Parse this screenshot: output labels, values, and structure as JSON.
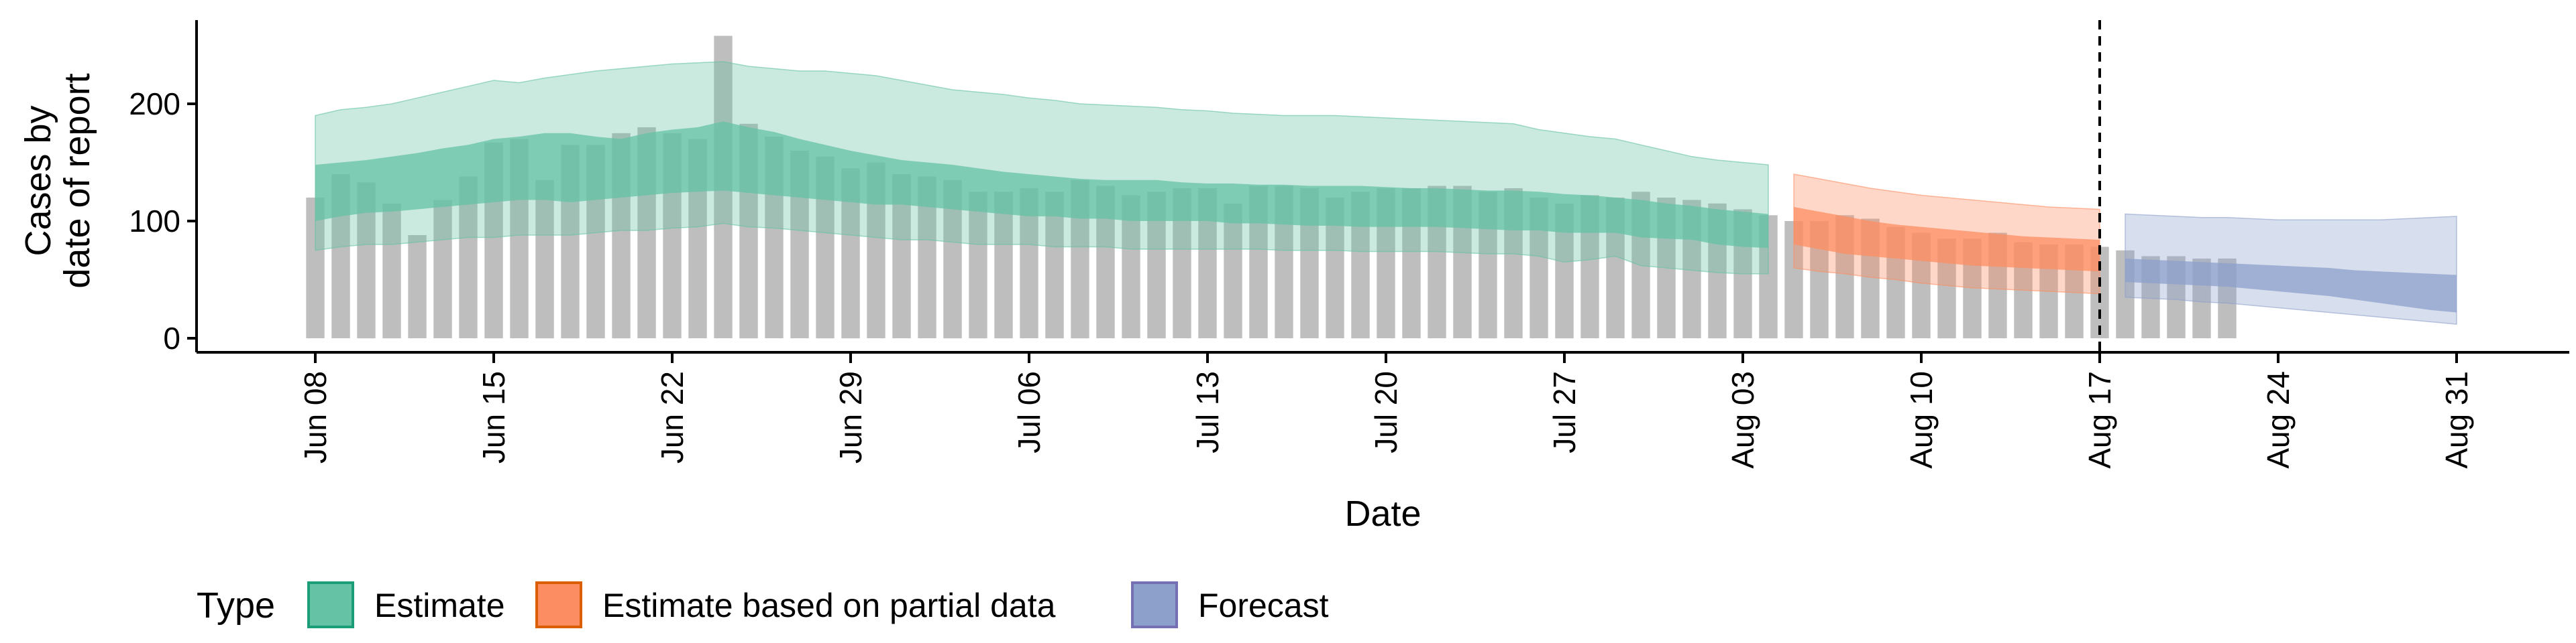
{
  "chart_data": {
    "type": "bar",
    "xlabel": "Date",
    "ylabel_lines": [
      "Cases by",
      "date of report"
    ],
    "x_start_date": "2020-06-08",
    "x_end_date": "2020-08-31",
    "ylim": [
      0,
      270
    ],
    "yticks": [
      0,
      100,
      200
    ],
    "x_ticks": [
      {
        "date": "2020-06-08",
        "label": "Jun 08"
      },
      {
        "date": "2020-06-15",
        "label": "Jun 15"
      },
      {
        "date": "2020-06-22",
        "label": "Jun 22"
      },
      {
        "date": "2020-06-29",
        "label": "Jun 29"
      },
      {
        "date": "2020-07-06",
        "label": "Jul 06"
      },
      {
        "date": "2020-07-13",
        "label": "Jul 13"
      },
      {
        "date": "2020-07-20",
        "label": "Jul 20"
      },
      {
        "date": "2020-07-27",
        "label": "Jul 27"
      },
      {
        "date": "2020-08-03",
        "label": "Aug 03"
      },
      {
        "date": "2020-08-10",
        "label": "Aug 10"
      },
      {
        "date": "2020-08-17",
        "label": "Aug 17"
      },
      {
        "date": "2020-08-24",
        "label": "Aug 24"
      },
      {
        "date": "2020-08-31",
        "label": "Aug 31"
      }
    ],
    "vline_date": "2020-08-17",
    "reported_cases": {
      "start_date": "2020-06-08",
      "values": [
        120,
        140,
        133,
        115,
        88,
        118,
        138,
        167,
        170,
        135,
        165,
        165,
        175,
        180,
        175,
        170,
        258,
        183,
        172,
        160,
        155,
        145,
        150,
        140,
        138,
        135,
        125,
        125,
        128,
        125,
        135,
        130,
        122,
        125,
        128,
        128,
        115,
        130,
        130,
        128,
        120,
        125,
        128,
        128,
        130,
        130,
        125,
        128,
        120,
        115,
        122,
        120,
        125,
        120,
        118,
        115,
        110,
        105,
        100,
        100,
        105,
        102,
        95,
        90,
        85,
        85,
        90,
        82,
        80,
        80,
        78,
        75,
        70,
        70,
        68,
        68
      ]
    },
    "series": [
      {
        "name": "Estimate",
        "color": "#66C2A5",
        "start_date": "2020-06-08",
        "lower90": [
          75,
          78,
          80,
          80,
          82,
          84,
          86,
          86,
          88,
          88,
          88,
          90,
          92,
          92,
          94,
          95,
          98,
          95,
          94,
          92,
          90,
          88,
          86,
          84,
          84,
          82,
          80,
          80,
          80,
          78,
          78,
          78,
          76,
          76,
          76,
          76,
          76,
          76,
          75,
          75,
          75,
          74,
          74,
          74,
          74,
          73,
          72,
          72,
          70,
          65,
          67,
          70,
          62,
          60,
          58,
          56,
          55,
          55
        ],
        "lower50": [
          100,
          104,
          107,
          108,
          110,
          112,
          114,
          116,
          118,
          118,
          116,
          118,
          120,
          122,
          124,
          125,
          126,
          124,
          122,
          120,
          118,
          116,
          114,
          114,
          112,
          110,
          108,
          106,
          104,
          104,
          102,
          102,
          100,
          100,
          100,
          100,
          98,
          98,
          97,
          96,
          96,
          95,
          95,
          95,
          95,
          94,
          93,
          92,
          92,
          90,
          90,
          90,
          86,
          85,
          84,
          80,
          78,
          77
        ],
        "upper50": [
          148,
          150,
          152,
          155,
          158,
          162,
          165,
          170,
          172,
          175,
          175,
          172,
          170,
          175,
          178,
          180,
          185,
          180,
          176,
          170,
          165,
          160,
          156,
          152,
          150,
          148,
          145,
          142,
          140,
          138,
          136,
          135,
          135,
          135,
          133,
          132,
          132,
          131,
          131,
          130,
          130,
          130,
          129,
          128,
          128,
          127,
          126,
          126,
          125,
          123,
          122,
          120,
          118,
          115,
          113,
          110,
          108,
          106
        ],
        "upper90": [
          190,
          195,
          197,
          200,
          205,
          210,
          215,
          220,
          218,
          222,
          225,
          228,
          230,
          232,
          234,
          235,
          236,
          232,
          230,
          228,
          228,
          226,
          224,
          220,
          216,
          212,
          210,
          208,
          205,
          203,
          200,
          199,
          198,
          197,
          195,
          194,
          192,
          191,
          190,
          190,
          190,
          189,
          188,
          187,
          186,
          185,
          184,
          183,
          178,
          175,
          172,
          170,
          165,
          160,
          155,
          152,
          150,
          148
        ]
      },
      {
        "name": "Estimate based on partial data",
        "color": "#FC8D62",
        "start_date": "2020-08-05",
        "lower90": [
          60,
          57,
          55,
          52,
          50,
          47,
          45,
          43,
          42,
          41,
          40,
          39,
          38
        ],
        "lower50": [
          80,
          76,
          72,
          70,
          68,
          66,
          64,
          62,
          61,
          60,
          59,
          58,
          57
        ],
        "upper50": [
          112,
          108,
          104,
          100,
          97,
          95,
          93,
          91,
          89,
          87,
          86,
          85,
          84
        ],
        "upper90": [
          140,
          136,
          132,
          128,
          125,
          122,
          120,
          118,
          116,
          114,
          112,
          111,
          110
        ]
      },
      {
        "name": "Forecast",
        "color": "#8DA0CB",
        "start_date": "2020-08-18",
        "lower90": [
          35,
          34,
          33,
          31,
          30,
          28,
          26,
          24,
          22,
          20,
          18,
          16,
          14,
          12
        ],
        "lower50": [
          48,
          47,
          46,
          45,
          44,
          42,
          40,
          38,
          36,
          33,
          30,
          27,
          24,
          22
        ],
        "upper50": [
          68,
          67,
          66,
          65,
          64,
          63,
          62,
          61,
          60,
          58,
          57,
          56,
          55,
          54
        ],
        "upper90": [
          106,
          105,
          104,
          103,
          103,
          102,
          101,
          101,
          101,
          101,
          101,
          102,
          103,
          104
        ]
      }
    ],
    "legend": {
      "title": "Type",
      "position": "bottom-left",
      "items": [
        {
          "label": "Estimate",
          "fill": "#66C2A5",
          "stroke": "#1B9E77"
        },
        {
          "label": "Estimate based on partial data",
          "fill": "#FC8D62",
          "stroke": "#D95F02"
        },
        {
          "label": "Forecast",
          "fill": "#8DA0CB",
          "stroke": "#7570B3"
        }
      ]
    },
    "bar_color": "#BEBEBE",
    "grid": false
  }
}
